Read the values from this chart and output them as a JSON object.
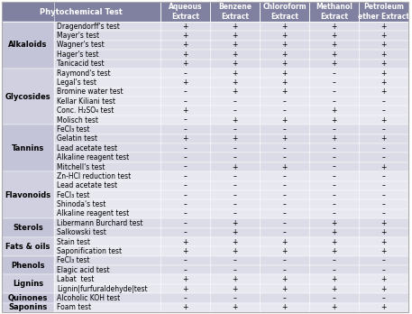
{
  "rows": [
    [
      "Alkaloids",
      "Dragendorff's test",
      "+",
      "+",
      "+",
      "+",
      "+"
    ],
    [
      "Alkaloids",
      "Mayer's test",
      "+",
      "+",
      "+",
      "+",
      "+"
    ],
    [
      "Alkaloids",
      "Wagner's test",
      "+",
      "+",
      "+",
      "+",
      "+"
    ],
    [
      "Alkaloids",
      "Hager's test",
      "+",
      "+",
      "+",
      "+",
      "+"
    ],
    [
      "Alkaloids",
      "Tanicacid test",
      "+",
      "+",
      "+",
      "+",
      "+"
    ],
    [
      "Glycosides",
      "Raymond's test",
      "–",
      "+",
      "+",
      "–",
      "+"
    ],
    [
      "Glycosides",
      "Legal's test",
      "+",
      "+",
      "+",
      "–",
      "+"
    ],
    [
      "Glycosides",
      "Bromine water test",
      "–",
      "+",
      "+",
      "–",
      "+"
    ],
    [
      "Glycosides",
      "Kellar Kiliani test",
      "–",
      "–",
      "–",
      "–",
      "–"
    ],
    [
      "Glycosides",
      "Conc. H₂SO₄ test",
      "+",
      "–",
      "–",
      "+",
      "–"
    ],
    [
      "Glycosides",
      "Molisch test",
      "–",
      "+",
      "+",
      "+",
      "+"
    ],
    [
      "Tannins",
      "FeCl₃ test",
      "–",
      "–",
      "–",
      "–",
      "–"
    ],
    [
      "Tannins",
      "Gelatin test",
      "+",
      "+",
      "+",
      "+",
      "+"
    ],
    [
      "Tannins",
      "Lead acetate test",
      "–",
      "–",
      "–",
      "–",
      "–"
    ],
    [
      "Tannins",
      "Alkaline reagent test",
      "–",
      "–",
      "–",
      "–",
      "–"
    ],
    [
      "Tannins",
      "Mitchell's test",
      "–",
      "+",
      "+",
      "–",
      "+"
    ],
    [
      "Flavonoids",
      "Zn-HCl reduction test",
      "–",
      "–",
      "–",
      "–",
      "–"
    ],
    [
      "Flavonoids",
      "Lead acetate test",
      "–",
      "–",
      "–",
      "–",
      "–"
    ],
    [
      "Flavonoids",
      "FeCl₃ test",
      "–",
      "–",
      "–",
      "–",
      "–"
    ],
    [
      "Flavonoids",
      "Shinoda's test",
      "–",
      "–",
      "–",
      "–",
      "–"
    ],
    [
      "Flavonoids",
      "Alkaline reagent test",
      "–",
      "–",
      "–",
      "–",
      "–"
    ],
    [
      "Sterols",
      "Libermann Burchard test",
      "–",
      "+",
      "–",
      "+",
      "+"
    ],
    [
      "Sterols",
      "Salkowski test",
      "–",
      "+",
      "–",
      "+",
      "+"
    ],
    [
      "Fats & oils",
      "Stain test",
      "+",
      "+",
      "+",
      "+",
      "+"
    ],
    [
      "Fats & oils",
      "Saponification test",
      "+",
      "+",
      "+",
      "+",
      "+"
    ],
    [
      "Phenols",
      "FeCl₃ test",
      "–",
      "–",
      "–",
      "–",
      "–"
    ],
    [
      "Phenols",
      "Elagic acid test",
      "–",
      "–",
      "–",
      "–",
      "–"
    ],
    [
      "Lignins",
      "Labat  test",
      "+",
      "+",
      "+",
      "+",
      "+"
    ],
    [
      "Lignins",
      "Lignin|furfuraldehyde|test",
      "+",
      "+",
      "+",
      "+",
      "+"
    ],
    [
      "Quinones",
      "Alcoholic KOH test",
      "–",
      "–",
      "–",
      "–",
      "–"
    ],
    [
      "Saponins",
      "Foam test",
      "+",
      "+",
      "+",
      "+",
      "+"
    ]
  ],
  "col_headers": [
    "Aqueous\nExtract",
    "Benzene\nExtract",
    "Chloroform\nExtract",
    "Methanol\nExtract",
    "Petroleum\nether Extract"
  ],
  "header_bg": "#8080a0",
  "header_text": "#ffffff",
  "row_bg_A": "#dcdce8",
  "row_bg_B": "#e8e8f0",
  "cat_bg_A": "#c4c4d8",
  "cat_bg_B": "#d0d0e0",
  "border_color": "#aaaaaa",
  "font_size": 5.5,
  "header_font_size": 6.0,
  "cat_font_size": 6.0,
  "test_font_size": 5.5
}
